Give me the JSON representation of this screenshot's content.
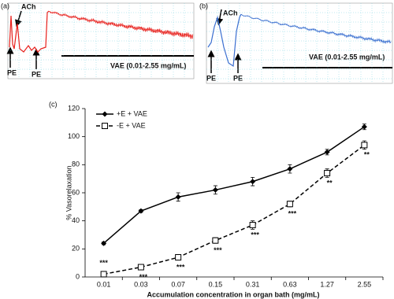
{
  "panel_a": {
    "label": "(a)",
    "labels": [
      "ACh",
      "PE",
      "PE"
    ],
    "protocol": "VAE (0.01-2.55 mg/mL)",
    "color": "#e8201c"
  },
  "panel_b": {
    "label": "(b)",
    "labels": [
      "ACh",
      "PE",
      "PE"
    ],
    "protocol": "VAE (0.01-2.55 mg/mL)",
    "color": "#3a6fd0"
  },
  "chart_data": {
    "type": "line",
    "label": "(c)",
    "x_label": "Accumulation concentration in organ bath (mg/mL)",
    "y_label": "% Vasorelaxation",
    "categories": [
      "0.01",
      "0.03",
      "0.07",
      "0.15",
      "0.31",
      "0.63",
      "1.27",
      "2.55"
    ],
    "series": [
      {
        "name": "+E + VAE",
        "color": "#000000",
        "marker": "diamond",
        "dashed": false,
        "values": [
          24,
          47,
          57,
          62,
          68,
          77,
          89,
          107
        ],
        "errors": [
          1,
          1,
          3,
          3,
          3,
          3,
          2,
          2
        ]
      },
      {
        "name": "-E + VAE",
        "color": "#000000",
        "marker": "open-square",
        "dashed": true,
        "values": [
          2,
          7,
          14,
          26,
          37,
          52,
          74,
          94
        ],
        "errors": [
          1,
          1,
          2,
          2,
          3,
          2,
          3,
          3
        ],
        "significance": [
          "***",
          "***",
          "***",
          "***",
          "***",
          "***",
          "**",
          "**"
        ]
      }
    ],
    "ylim": [
      0,
      120
    ],
    "yticks": [
      0,
      20,
      40,
      60,
      80,
      100,
      120
    ],
    "legend": "upper left",
    "grid": false
  }
}
